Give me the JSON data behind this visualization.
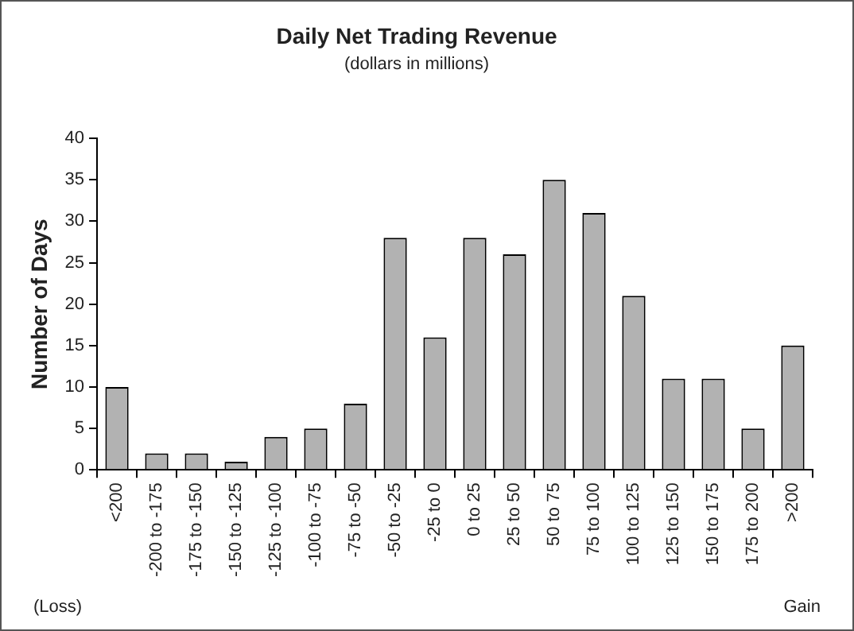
{
  "chart_data": {
    "type": "bar",
    "title": "Daily Net Trading Revenue",
    "subtitle": "(dollars in millions)",
    "ylabel": "Number of Days",
    "categories": [
      "<200",
      "-200 to -175",
      "-175 to -150",
      "-150 to -125",
      "-125 to -100",
      "-100 to -75",
      "-75 to -50",
      "-50 to -25",
      "-25 to 0",
      "0 to 25",
      "25 to 50",
      "50 to 75",
      "75 to 100",
      "100 to 125",
      "125 to 150",
      "150 to 175",
      "175 to 200",
      ">200"
    ],
    "values": [
      10,
      2,
      2,
      1,
      4,
      5,
      8,
      28,
      16,
      28,
      26,
      35,
      31,
      21,
      11,
      11,
      5,
      15
    ],
    "color": "#b2b2b2",
    "ylim": [
      0,
      40
    ],
    "yticks": [
      0,
      5,
      10,
      15,
      20,
      25,
      30,
      35,
      40
    ],
    "grid": false,
    "legend": false,
    "annotations": [
      "(Loss)",
      "Gain"
    ]
  }
}
